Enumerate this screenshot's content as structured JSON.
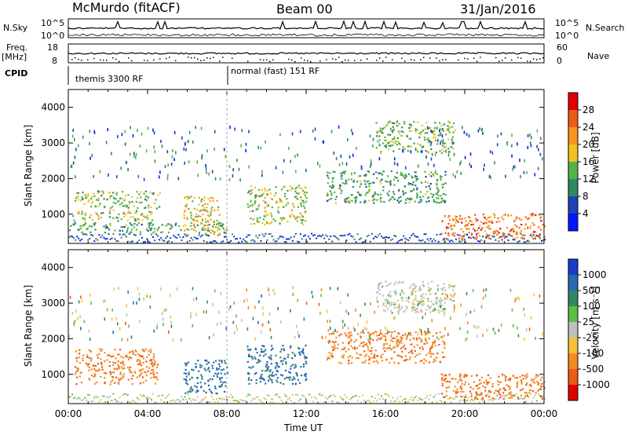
{
  "header": {
    "station": "McMurdo (fitACF)",
    "beam": "Beam 00",
    "date": "31/Jan/2016"
  },
  "top_panel": {
    "left_label": "N.Sky",
    "left_ticks": [
      "10^5",
      "10^0"
    ],
    "right_label": "N.Search",
    "right_ticks": [
      "10^5",
      "10^0"
    ]
  },
  "freq_panel": {
    "left_label_1": "Freq.",
    "left_label_2": "[MHz]",
    "left_ticks": [
      "18",
      "8"
    ],
    "right_label": "Nave",
    "right_ticks": [
      "60",
      "0"
    ]
  },
  "cpid_panel": {
    "label": "CPID",
    "modes": [
      "themis 3300 RF",
      "normal (fast) 151 RF"
    ]
  },
  "chart_data": [
    {
      "type": "heatmap",
      "quantity": "Power",
      "ylabel": "Slant Range [km]",
      "xlabel": "Time UT",
      "ylim": [
        180,
        4500
      ],
      "yticks": [
        "1000",
        "2000",
        "3000",
        "4000"
      ],
      "colorbar_label": "Power [dB]",
      "colorbar_ticks": [
        "4",
        "8",
        "12",
        "16",
        "20",
        "24",
        "28"
      ],
      "colors": [
        "#0018ff",
        "#1c44b4",
        "#2f8a63",
        "#54b347",
        "#f2c021",
        "#f7941e",
        "#f05a14",
        "#e00000"
      ],
      "features": [
        {
          "time_start": 0.3,
          "time_end": 4.6,
          "range_start": 1150,
          "range_end": 1650,
          "level": 0.45
        },
        {
          "time_start": 0.2,
          "time_end": 4.2,
          "range_start": 800,
          "range_end": 1100,
          "level": 0.5
        },
        {
          "time_start": 0.0,
          "time_end": 8.0,
          "range_start": 450,
          "range_end": 750,
          "level": 0.35
        },
        {
          "time_start": 5.8,
          "time_end": 7.6,
          "range_start": 400,
          "range_end": 1500,
          "level": 0.6
        },
        {
          "time_start": 9.0,
          "time_end": 12.0,
          "range_start": 700,
          "range_end": 1800,
          "level": 0.5
        },
        {
          "time_start": 15.5,
          "time_end": 19.5,
          "range_start": 2700,
          "range_end": 3600,
          "level": 0.45
        },
        {
          "time_start": 18.8,
          "time_end": 24.0,
          "range_start": 300,
          "range_end": 1000,
          "level": 0.8
        },
        {
          "time_start": 13.0,
          "time_end": 19.0,
          "range_start": 1300,
          "range_end": 2200,
          "level": 0.35
        }
      ]
    },
    {
      "type": "heatmap",
      "quantity": "Velocity",
      "ylabel": "Slant Range [km]",
      "xlabel": "Time UT",
      "ylim": [
        180,
        4500
      ],
      "yticks": [
        "1000",
        "2000",
        "3000",
        "4000"
      ],
      "colorbar_label": "Velocity [m s⁻¹]",
      "colorbar_ticks": [
        "1000",
        "500",
        "100",
        "25",
        "-25",
        "-100",
        "-500",
        "-1000"
      ],
      "colors": [
        "#1c3cc8",
        "#2a6ab0",
        "#2f8a63",
        "#5cc040",
        "#bfbfbf",
        "#f5c23a",
        "#f28c1e",
        "#f05a14",
        "#e00000"
      ],
      "features": [
        {
          "time_start": 0.3,
          "time_end": 4.5,
          "range_start": 700,
          "range_end": 1700,
          "level": -0.55
        },
        {
          "time_start": 5.8,
          "time_end": 8.0,
          "range_start": 450,
          "range_end": 1400,
          "level": 0.7
        },
        {
          "time_start": 9.0,
          "time_end": 12.0,
          "range_start": 700,
          "range_end": 1800,
          "level": 0.7
        },
        {
          "time_start": 13.0,
          "time_end": 19.0,
          "range_start": 1300,
          "range_end": 2200,
          "level": -0.55
        },
        {
          "time_start": 15.5,
          "time_end": 19.5,
          "range_start": 2700,
          "range_end": 3600,
          "level": 0.0
        },
        {
          "time_start": 18.8,
          "time_end": 24.0,
          "range_start": 300,
          "range_end": 1000,
          "level": -0.6
        }
      ]
    }
  ],
  "x_axis": {
    "ticks": [
      "00:00",
      "04:00",
      "08:00",
      "12:00",
      "16:00",
      "20:00",
      "00:00"
    ],
    "label": "Time UT"
  }
}
